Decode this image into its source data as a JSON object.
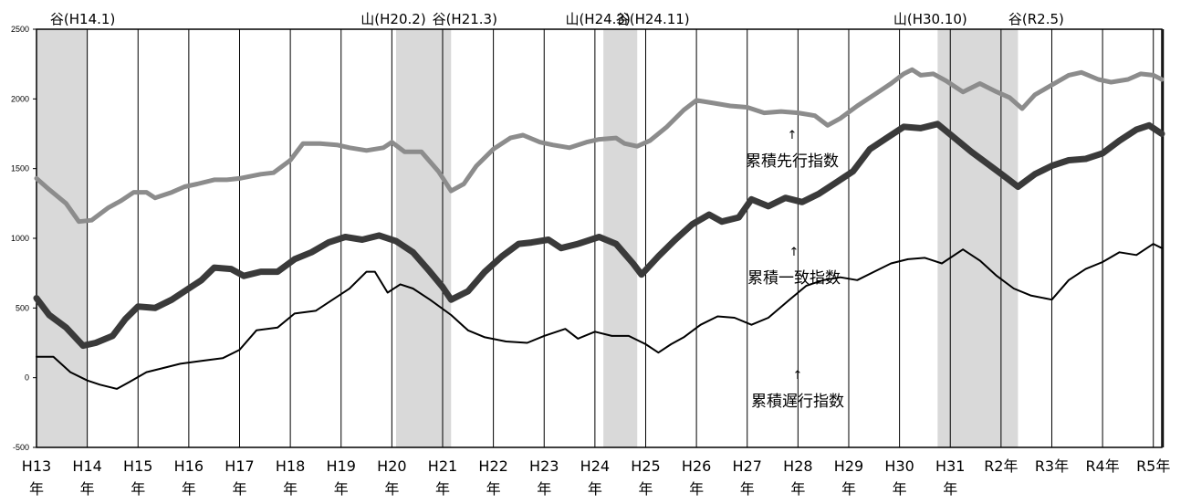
{
  "chart_data": {
    "type": "line",
    "title": "",
    "xlabel": "",
    "ylabel": "",
    "ylim": [
      -500,
      2500
    ],
    "yticks": [
      "2500",
      "2000",
      "1500",
      "1000",
      "500",
      "0",
      "-500"
    ],
    "year_labels": [
      [
        "H13",
        "年"
      ],
      [
        "H14",
        "年"
      ],
      [
        "H15",
        "年"
      ],
      [
        "H16",
        "年"
      ],
      [
        "H17",
        "年"
      ],
      [
        "H18",
        "年"
      ],
      [
        "H19",
        "年"
      ],
      [
        "H20",
        "年"
      ],
      [
        "H21",
        "年"
      ],
      [
        "H22",
        "年"
      ],
      [
        "H23",
        "年"
      ],
      [
        "H24",
        "年"
      ],
      [
        "H25",
        "年"
      ],
      [
        "H26",
        "年"
      ],
      [
        "H27",
        "年"
      ],
      [
        "H28",
        "年"
      ],
      [
        "H29",
        "年"
      ],
      [
        "H30",
        "年"
      ],
      [
        "H31",
        "年"
      ],
      [
        "R2年",
        ""
      ],
      [
        "R3年",
        ""
      ],
      [
        "R4年",
        ""
      ],
      [
        "R5年",
        ""
      ]
    ],
    "recessions": [
      {
        "start": "2001-01",
        "end": "2002-01"
      },
      {
        "start": "2008-02",
        "end": "2009-03"
      },
      {
        "start": "2012-03",
        "end": "2012-11"
      },
      {
        "start": "2018-10",
        "end": "2020-05"
      }
    ],
    "phase_labels": [
      {
        "text": "谷(H14.1)",
        "date": "2002-01"
      },
      {
        "text": "山(H20.2)",
        "date": "2008-02"
      },
      {
        "text": "谷(H21.3)",
        "date": "2009-03"
      },
      {
        "text": "山(H24.3)",
        "date": "2012-03"
      },
      {
        "text": "谷(H24.11)",
        "date": "2012-11"
      },
      {
        "text": "山(H30.10)",
        "date": "2018-10"
      },
      {
        "text": "谷(R2.5)",
        "date": "2020-05"
      }
    ],
    "annotations": {
      "arrow": "↑",
      "leading": "累積先行指数",
      "coincident": "累積一致指数",
      "lagging": "累積遅行指数"
    },
    "series": [
      {
        "key": "leading",
        "color": "#8c8c8c",
        "points": [
          [
            "2001-01",
            1430
          ],
          [
            "2001-04",
            1350
          ],
          [
            "2001-08",
            1250
          ],
          [
            "2001-11",
            1120
          ],
          [
            "2002-02",
            1130
          ],
          [
            "2002-06",
            1220
          ],
          [
            "2002-09",
            1270
          ],
          [
            "2002-12",
            1330
          ],
          [
            "2003-03",
            1330
          ],
          [
            "2003-05",
            1290
          ],
          [
            "2003-09",
            1330
          ],
          [
            "2003-12",
            1370
          ],
          [
            "2004-03",
            1390
          ],
          [
            "2004-07",
            1420
          ],
          [
            "2004-10",
            1420
          ],
          [
            "2005-01",
            1430
          ],
          [
            "2005-06",
            1460
          ],
          [
            "2005-09",
            1470
          ],
          [
            "2006-01",
            1560
          ],
          [
            "2006-04",
            1680
          ],
          [
            "2006-08",
            1680
          ],
          [
            "2006-12",
            1670
          ],
          [
            "2007-03",
            1650
          ],
          [
            "2007-07",
            1630
          ],
          [
            "2007-11",
            1650
          ],
          [
            "2008-01",
            1690
          ],
          [
            "2008-04",
            1620
          ],
          [
            "2008-08",
            1620
          ],
          [
            "2008-12",
            1480
          ],
          [
            "2009-03",
            1340
          ],
          [
            "2009-06",
            1390
          ],
          [
            "2009-09",
            1520
          ],
          [
            "2010-01",
            1640
          ],
          [
            "2010-05",
            1720
          ],
          [
            "2010-08",
            1740
          ],
          [
            "2010-12",
            1690
          ],
          [
            "2011-03",
            1670
          ],
          [
            "2011-07",
            1650
          ],
          [
            "2011-11",
            1690
          ],
          [
            "2012-02",
            1710
          ],
          [
            "2012-06",
            1720
          ],
          [
            "2012-08",
            1680
          ],
          [
            "2012-11",
            1660
          ],
          [
            "2013-02",
            1700
          ],
          [
            "2013-06",
            1800
          ],
          [
            "2013-10",
            1920
          ],
          [
            "2014-01",
            1990
          ],
          [
            "2014-05",
            1970
          ],
          [
            "2014-09",
            1950
          ],
          [
            "2015-01",
            1940
          ],
          [
            "2015-05",
            1900
          ],
          [
            "2015-09",
            1910
          ],
          [
            "2016-01",
            1900
          ],
          [
            "2016-05",
            1880
          ],
          [
            "2016-08",
            1810
          ],
          [
            "2016-11",
            1860
          ],
          [
            "2017-03",
            1950
          ],
          [
            "2017-07",
            2030
          ],
          [
            "2017-11",
            2110
          ],
          [
            "2018-02",
            2180
          ],
          [
            "2018-04",
            2210
          ],
          [
            "2018-06",
            2170
          ],
          [
            "2018-09",
            2180
          ],
          [
            "2018-12",
            2130
          ],
          [
            "2019-04",
            2050
          ],
          [
            "2019-08",
            2110
          ],
          [
            "2019-12",
            2050
          ],
          [
            "2020-03",
            2010
          ],
          [
            "2020-06",
            1930
          ],
          [
            "2020-09",
            2030
          ],
          [
            "2021-01",
            2100
          ],
          [
            "2021-05",
            2170
          ],
          [
            "2021-08",
            2190
          ],
          [
            "2021-12",
            2140
          ],
          [
            "2022-03",
            2120
          ],
          [
            "2022-07",
            2140
          ],
          [
            "2022-10",
            2180
          ],
          [
            "2023-01",
            2170
          ],
          [
            "2023-03",
            2140
          ]
        ]
      },
      {
        "key": "coincident",
        "color": "#3a3a3a",
        "points": [
          [
            "2001-01",
            570
          ],
          [
            "2001-04",
            450
          ],
          [
            "2001-08",
            360
          ],
          [
            "2001-12",
            230
          ],
          [
            "2002-03",
            250
          ],
          [
            "2002-07",
            300
          ],
          [
            "2002-10",
            420
          ],
          [
            "2003-01",
            510
          ],
          [
            "2003-05",
            500
          ],
          [
            "2003-09",
            560
          ],
          [
            "2003-12",
            620
          ],
          [
            "2004-04",
            700
          ],
          [
            "2004-07",
            790
          ],
          [
            "2004-11",
            780
          ],
          [
            "2005-02",
            730
          ],
          [
            "2005-06",
            760
          ],
          [
            "2005-10",
            760
          ],
          [
            "2006-02",
            850
          ],
          [
            "2006-06",
            900
          ],
          [
            "2006-10",
            970
          ],
          [
            "2007-02",
            1010
          ],
          [
            "2007-06",
            990
          ],
          [
            "2007-10",
            1020
          ],
          [
            "2008-02",
            980
          ],
          [
            "2008-06",
            900
          ],
          [
            "2008-10",
            760
          ],
          [
            "2009-01",
            650
          ],
          [
            "2009-03",
            560
          ],
          [
            "2009-07",
            620
          ],
          [
            "2009-11",
            760
          ],
          [
            "2010-03",
            870
          ],
          [
            "2010-07",
            960
          ],
          [
            "2010-10",
            970
          ],
          [
            "2011-02",
            990
          ],
          [
            "2011-05",
            930
          ],
          [
            "2011-09",
            960
          ],
          [
            "2012-02",
            1010
          ],
          [
            "2012-06",
            960
          ],
          [
            "2012-10",
            820
          ],
          [
            "2012-12",
            740
          ],
          [
            "2013-04",
            870
          ],
          [
            "2013-08",
            990
          ],
          [
            "2013-12",
            1100
          ],
          [
            "2014-04",
            1170
          ],
          [
            "2014-07",
            1120
          ],
          [
            "2014-11",
            1150
          ],
          [
            "2015-02",
            1280
          ],
          [
            "2015-06",
            1230
          ],
          [
            "2015-10",
            1290
          ],
          [
            "2016-02",
            1260
          ],
          [
            "2016-06",
            1320
          ],
          [
            "2016-10",
            1400
          ],
          [
            "2017-02",
            1480
          ],
          [
            "2017-06",
            1640
          ],
          [
            "2017-10",
            1720
          ],
          [
            "2018-02",
            1800
          ],
          [
            "2018-06",
            1790
          ],
          [
            "2018-10",
            1820
          ],
          [
            "2019-02",
            1720
          ],
          [
            "2019-06",
            1620
          ],
          [
            "2019-10",
            1530
          ],
          [
            "2020-02",
            1440
          ],
          [
            "2020-05",
            1370
          ],
          [
            "2020-09",
            1460
          ],
          [
            "2021-01",
            1520
          ],
          [
            "2021-05",
            1560
          ],
          [
            "2021-09",
            1570
          ],
          [
            "2022-01",
            1610
          ],
          [
            "2022-05",
            1700
          ],
          [
            "2022-09",
            1780
          ],
          [
            "2022-12",
            1810
          ],
          [
            "2023-03",
            1750
          ]
        ]
      },
      {
        "key": "lagging",
        "color": "#000000",
        "points": [
          [
            "2001-01",
            150
          ],
          [
            "2001-05",
            150
          ],
          [
            "2001-09",
            40
          ],
          [
            "2002-01",
            -20
          ],
          [
            "2002-04",
            -50
          ],
          [
            "2002-08",
            -80
          ],
          [
            "2002-11",
            -30
          ],
          [
            "2003-03",
            40
          ],
          [
            "2003-07",
            70
          ],
          [
            "2003-11",
            100
          ],
          [
            "2004-04",
            120
          ],
          [
            "2004-09",
            140
          ],
          [
            "2005-01",
            200
          ],
          [
            "2005-05",
            340
          ],
          [
            "2005-10",
            360
          ],
          [
            "2006-02",
            460
          ],
          [
            "2006-07",
            480
          ],
          [
            "2006-11",
            560
          ],
          [
            "2007-03",
            640
          ],
          [
            "2007-07",
            760
          ],
          [
            "2007-09",
            760
          ],
          [
            "2007-12",
            610
          ],
          [
            "2008-03",
            670
          ],
          [
            "2008-06",
            640
          ],
          [
            "2008-10",
            560
          ],
          [
            "2009-03",
            450
          ],
          [
            "2009-07",
            340
          ],
          [
            "2009-11",
            290
          ],
          [
            "2010-04",
            260
          ],
          [
            "2010-09",
            250
          ],
          [
            "2011-01",
            300
          ],
          [
            "2011-06",
            350
          ],
          [
            "2011-09",
            280
          ],
          [
            "2012-01",
            330
          ],
          [
            "2012-05",
            300
          ],
          [
            "2012-09",
            300
          ],
          [
            "2013-01",
            240
          ],
          [
            "2013-04",
            180
          ],
          [
            "2013-07",
            240
          ],
          [
            "2013-10",
            290
          ],
          [
            "2014-02",
            380
          ],
          [
            "2014-06",
            440
          ],
          [
            "2014-10",
            430
          ],
          [
            "2015-02",
            380
          ],
          [
            "2015-06",
            430
          ],
          [
            "2015-11",
            560
          ],
          [
            "2016-03",
            660
          ],
          [
            "2016-07",
            700
          ],
          [
            "2016-11",
            720
          ],
          [
            "2017-03",
            700
          ],
          [
            "2017-07",
            760
          ],
          [
            "2017-11",
            820
          ],
          [
            "2018-03",
            850
          ],
          [
            "2018-07",
            860
          ],
          [
            "2018-11",
            820
          ],
          [
            "2019-04",
            920
          ],
          [
            "2019-08",
            840
          ],
          [
            "2019-12",
            730
          ],
          [
            "2020-04",
            640
          ],
          [
            "2020-08",
            590
          ],
          [
            "2021-01",
            560
          ],
          [
            "2021-05",
            700
          ],
          [
            "2021-09",
            780
          ],
          [
            "2022-01",
            830
          ],
          [
            "2022-05",
            900
          ],
          [
            "2022-09",
            880
          ],
          [
            "2023-01",
            960
          ],
          [
            "2023-03",
            930
          ]
        ]
      }
    ]
  }
}
